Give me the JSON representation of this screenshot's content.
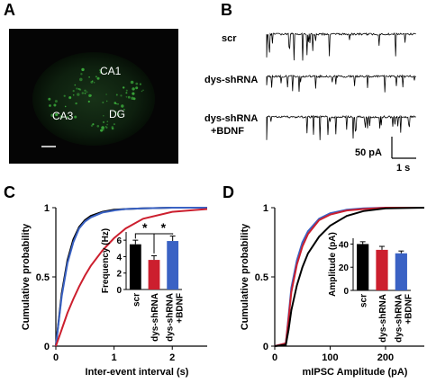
{
  "panels": {
    "A": {
      "label": "A",
      "regions": [
        "CA1",
        "CA3",
        "DG"
      ]
    },
    "B": {
      "label": "B",
      "trace_labels": [
        "scr",
        "dys-shRNA",
        "dys-shRNA",
        "+BDNF"
      ],
      "scalebar_y": "50 pA",
      "scalebar_x": "1 s"
    },
    "C": {
      "label": "C"
    },
    "D": {
      "label": "D"
    }
  },
  "colors": {
    "scr": "#000000",
    "dys_shRNA": "#cc1f2e",
    "dys_shRNA_BDNF": "#3a62c4",
    "micrograph_bg": "#050505",
    "fluor": "#3aa83a"
  },
  "chart_data": [
    {
      "id": "C-main",
      "type": "line",
      "xlabel": "Inter-event interval (s)",
      "ylabel": "Cumulative probability",
      "xlim": [
        0,
        2.6
      ],
      "ylim": [
        0,
        1
      ],
      "xticks": [
        0,
        1,
        2
      ],
      "yticks": [
        0,
        0.5,
        1
      ],
      "series": [
        {
          "color_key": "scr",
          "x": [
            0,
            0.1,
            0.2,
            0.3,
            0.4,
            0.5,
            0.6,
            0.8,
            1.0,
            1.2,
            1.5,
            2.0,
            2.6
          ],
          "y": [
            0,
            0.38,
            0.62,
            0.77,
            0.86,
            0.91,
            0.94,
            0.97,
            0.985,
            0.99,
            0.995,
            1,
            1
          ]
        },
        {
          "color_key": "dys_shRNA_BDNF",
          "x": [
            0,
            0.1,
            0.2,
            0.3,
            0.4,
            0.5,
            0.6,
            0.8,
            1.0,
            1.2,
            1.5,
            2.0,
            2.6
          ],
          "y": [
            0,
            0.36,
            0.6,
            0.75,
            0.85,
            0.9,
            0.93,
            0.965,
            0.98,
            0.99,
            0.995,
            1,
            1
          ]
        },
        {
          "color_key": "dys_shRNA",
          "x": [
            0,
            0.1,
            0.2,
            0.3,
            0.4,
            0.5,
            0.6,
            0.8,
            1.0,
            1.2,
            1.5,
            2.0,
            2.6
          ],
          "y": [
            0,
            0.12,
            0.24,
            0.34,
            0.43,
            0.51,
            0.58,
            0.69,
            0.78,
            0.85,
            0.92,
            0.97,
            0.99
          ]
        }
      ]
    },
    {
      "id": "C-inset",
      "type": "bar",
      "ylabel": "Frequency (Hz)",
      "ylim": [
        0,
        7
      ],
      "yticks": [
        0,
        2,
        4,
        6
      ],
      "categories": [
        "scr",
        "dys-shRNA",
        "dys-shRNA",
        "+BDNF"
      ],
      "bars": [
        {
          "label": "scr",
          "value": 5.5,
          "error": 0.5,
          "color_key": "scr"
        },
        {
          "label": "dys-shRNA",
          "value": 3.6,
          "error": 0.5,
          "color_key": "dys_shRNA"
        },
        {
          "label": "dys-shRNA +BDNF",
          "value": 5.9,
          "error": 0.6,
          "color_key": "dys_shRNA_BDNF"
        }
      ],
      "significance": [
        "*",
        "*"
      ]
    },
    {
      "id": "D-main",
      "type": "line",
      "xlabel": "mIPSC Amplitude (pA)",
      "ylabel": "Cumulative probability",
      "xlim": [
        0,
        270
      ],
      "ylim": [
        0,
        1
      ],
      "xticks": [
        0,
        100,
        200
      ],
      "yticks": [
        0,
        0.5,
        1
      ],
      "series": [
        {
          "color_key": "dys_shRNA_BDNF",
          "x": [
            0,
            20,
            25,
            30,
            40,
            50,
            60,
            80,
            100,
            130,
            160,
            200,
            270
          ],
          "y": [
            0,
            0.02,
            0.22,
            0.42,
            0.62,
            0.75,
            0.83,
            0.92,
            0.96,
            0.985,
            0.995,
            1,
            1
          ]
        },
        {
          "color_key": "dys_shRNA",
          "x": [
            0,
            20,
            25,
            30,
            40,
            50,
            60,
            80,
            100,
            130,
            160,
            200,
            270
          ],
          "y": [
            0,
            0.02,
            0.2,
            0.39,
            0.59,
            0.72,
            0.81,
            0.91,
            0.95,
            0.98,
            0.99,
            1,
            1
          ]
        },
        {
          "color_key": "scr",
          "x": [
            0,
            20,
            25,
            30,
            40,
            50,
            60,
            80,
            100,
            130,
            160,
            200,
            270
          ],
          "y": [
            0,
            0.01,
            0.12,
            0.26,
            0.44,
            0.57,
            0.67,
            0.79,
            0.87,
            0.94,
            0.975,
            0.995,
            1
          ]
        }
      ]
    },
    {
      "id": "D-inset",
      "type": "bar",
      "ylabel": "Amplitude (pA)",
      "ylim": [
        0,
        45
      ],
      "yticks": [
        0,
        20,
        40
      ],
      "categories": [
        "scr",
        "dys-shRNA",
        "dys-shRNA",
        "+BDNF"
      ],
      "bars": [
        {
          "label": "scr",
          "value": 40,
          "error": 2,
          "color_key": "scr"
        },
        {
          "label": "dys-shRNA",
          "value": 35,
          "error": 3,
          "color_key": "dys_shRNA"
        },
        {
          "label": "dys-shRNA +BDNF",
          "value": 32,
          "error": 2,
          "color_key": "dys_shRNA_BDNF"
        }
      ]
    }
  ]
}
